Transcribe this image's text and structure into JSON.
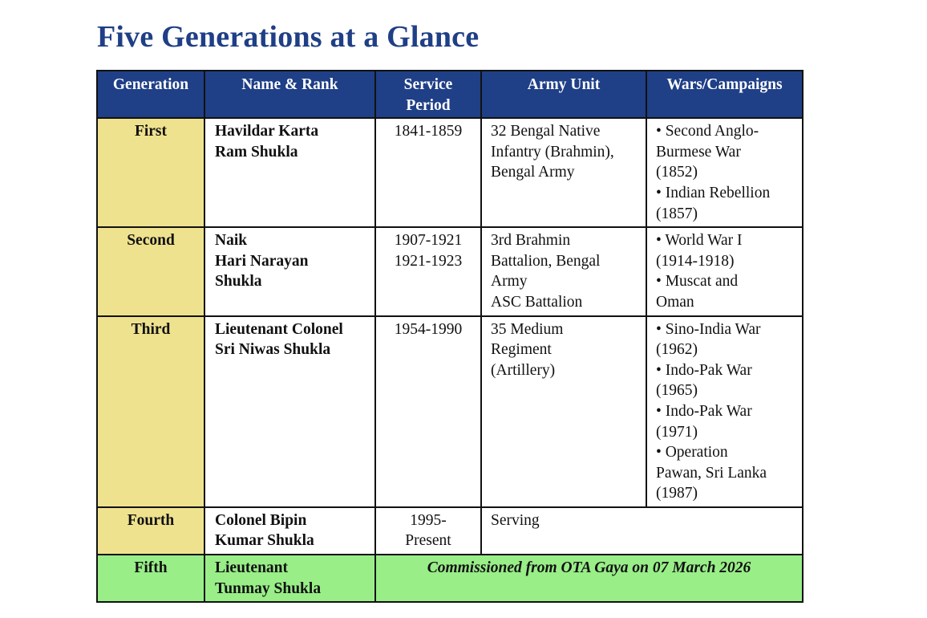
{
  "title": "Five Generations at a Glance",
  "colors": {
    "header_bg": "#1f3f86",
    "header_text": "#ffffff",
    "generation_bg": "#efe28e",
    "fifth_row_bg": "#99ee88",
    "title_color": "#1f3f86"
  },
  "table": {
    "headers": [
      [
        "Generation"
      ],
      [
        "Name & Rank"
      ],
      [
        "Service",
        "Period"
      ],
      [
        "Army Unit"
      ],
      [
        "Wars/Campaigns"
      ]
    ],
    "rows": [
      {
        "generation": "First",
        "name": [
          "Havildar Karta",
          "Ram Shukla"
        ],
        "period": [
          "1841-1859"
        ],
        "unit": [
          "32 Bengal Native",
          "Infantry (Brahmin),",
          "Bengal Army"
        ],
        "wars": [
          "• Second Anglo-",
          "Burmese War",
          "(1852)",
          "• Indian Rebellion",
          "(1857)"
        ]
      },
      {
        "generation": "Second",
        "name": [
          "Naik",
          "Hari Narayan",
          "Shukla"
        ],
        "period": [
          "1907-1921",
          "1921-1923"
        ],
        "unit": [
          "3rd Brahmin",
          "Battalion, Bengal",
          "Army",
          "ASC Battalion"
        ],
        "wars": [
          "• World War I",
          "(1914-1918)",
          "• Muscat and",
          "Oman"
        ]
      },
      {
        "generation": "Third",
        "name": [
          "Lieutenant Colonel",
          "Sri Niwas Shukla"
        ],
        "period": [
          "1954-1990"
        ],
        "unit": [
          "35 Medium",
          "Regiment",
          "(Artillery)"
        ],
        "wars": [
          "• Sino-India War",
          "(1962)",
          "• Indo-Pak War",
          "(1965)",
          "• Indo-Pak War",
          "(1971)",
          "• Operation",
          "Pawan, Sri Lanka",
          "(1987)"
        ]
      },
      {
        "generation": "Fourth",
        "name": [
          "Colonel Bipin",
          "Kumar Shukla"
        ],
        "period": [
          "1995-",
          "Present"
        ],
        "unit": [
          "Serving"
        ]
      },
      {
        "generation": "Fifth",
        "name": [
          "Lieutenant",
          "Tunmay Shukla"
        ],
        "commission": "Commissioned from OTA Gaya on 07 March 2026"
      }
    ]
  }
}
